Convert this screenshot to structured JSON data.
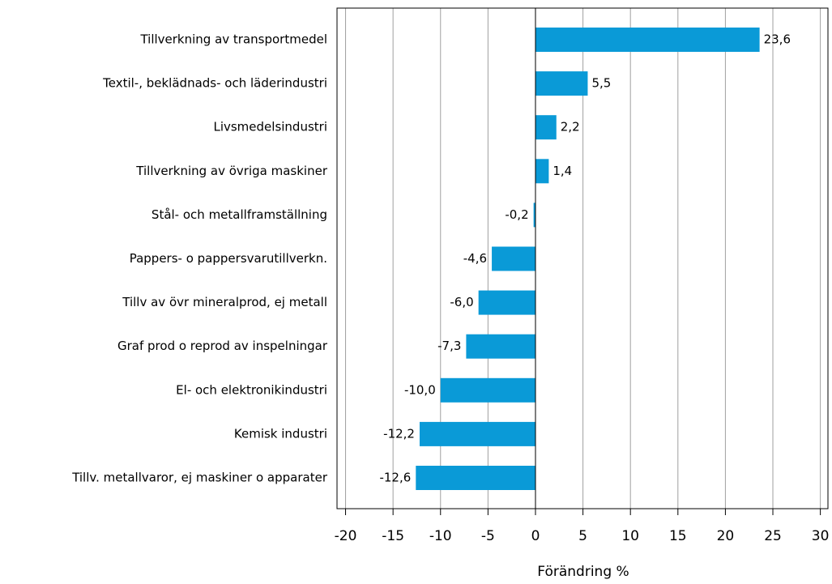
{
  "chart_data": {
    "type": "barh",
    "categories": [
      "Tillverkning av transportmedel",
      "Textil-, beklädnads- och läderindustri",
      "Livsmedelsindustri",
      "Tillverkning av övriga maskiner",
      "Stål- och metallframställning",
      "Pappers- o pappersvarutillverkn.",
      "Tillv av övr mineralprod, ej metall",
      "Graf prod o reprod av inspelningar",
      "El- och elektronikindustri",
      "Kemisk industri",
      "Tillv. metallvaror, ej maskiner o apparater"
    ],
    "values": [
      23.6,
      5.5,
      2.2,
      1.4,
      -0.2,
      -4.6,
      -6.0,
      -7.3,
      -10.0,
      -12.2,
      -12.6
    ],
    "value_labels": [
      "23,6",
      "5,5",
      "2,2",
      "1,4",
      "-0,2",
      "-4,6",
      "-6,0",
      "-7,3",
      "-10,0",
      "-12,2",
      "-12,6"
    ],
    "color": "#0a9ad7",
    "xlabel": "Förändring %",
    "xlim": [
      -20.9,
      30.8
    ],
    "xticks": [
      -20,
      -15,
      -10,
      -5,
      0,
      5,
      10,
      15,
      20,
      25,
      30
    ],
    "grid": true
  }
}
